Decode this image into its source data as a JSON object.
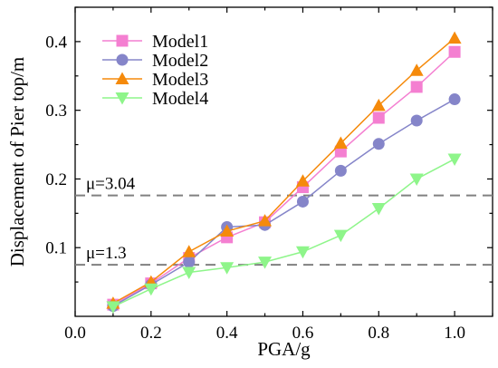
{
  "chart_data": {
    "type": "line",
    "title": "",
    "xlabel": "PGA/g",
    "ylabel": "Displacement of Pier top/m",
    "xlim": [
      0.0,
      1.1
    ],
    "ylim": [
      0.0,
      0.45
    ],
    "xticks": [
      0.0,
      0.2,
      0.4,
      0.6,
      0.8,
      1.0
    ],
    "xtick_labels": [
      "0.0",
      "0.2",
      "0.4",
      "0.6",
      "0.8",
      "1.0"
    ],
    "yticks": [
      0.1,
      0.2,
      0.3,
      0.4
    ],
    "ytick_labels": [
      "0.1",
      "0.2",
      "0.3",
      "0.4"
    ],
    "grid": false,
    "legend_position": "top-left",
    "x": [
      0.1,
      0.2,
      0.3,
      0.4,
      0.5,
      0.6,
      0.7,
      0.8,
      0.9,
      1.0
    ],
    "series": [
      {
        "name": "Model1",
        "color": "#f47fd1",
        "marker": "square",
        "values": [
          0.017,
          0.048,
          0.085,
          0.115,
          0.137,
          0.188,
          0.24,
          0.289,
          0.334,
          0.385
        ]
      },
      {
        "name": "Model2",
        "color": "#8585c9",
        "marker": "circle",
        "values": [
          0.015,
          0.046,
          0.079,
          0.13,
          0.133,
          0.167,
          0.212,
          0.251,
          0.285,
          0.316
        ]
      },
      {
        "name": "Model3",
        "color": "#f58a0b",
        "marker": "triangle-up",
        "values": [
          0.019,
          0.05,
          0.094,
          0.124,
          0.139,
          0.197,
          0.252,
          0.307,
          0.358,
          0.405
        ]
      },
      {
        "name": "Model4",
        "color": "#8ef58a",
        "marker": "triangle-down",
        "values": [
          0.014,
          0.04,
          0.064,
          0.071,
          0.079,
          0.094,
          0.118,
          0.157,
          0.2,
          0.229
        ]
      }
    ],
    "reference_lines": [
      {
        "y": 0.176,
        "label": "μ=3.04",
        "color": "#808080",
        "style": "dashed"
      },
      {
        "y": 0.075,
        "label": "μ=1.3",
        "color": "#808080",
        "style": "dashed"
      }
    ]
  }
}
